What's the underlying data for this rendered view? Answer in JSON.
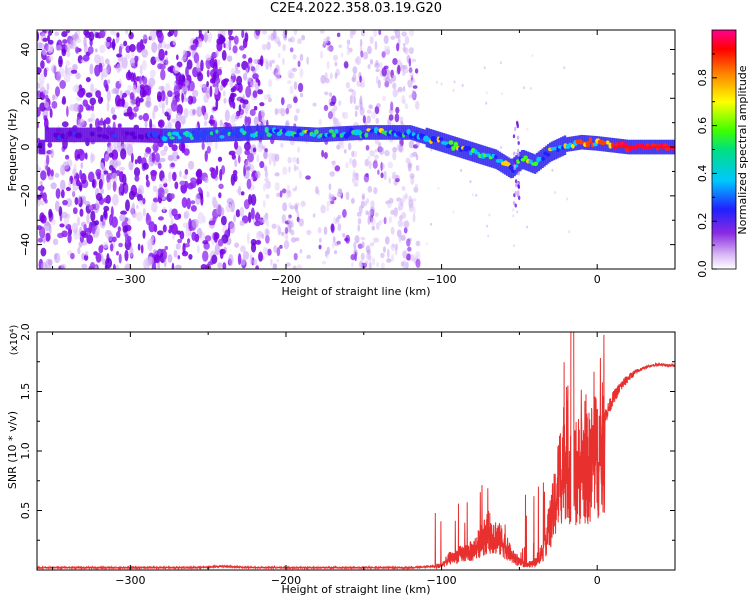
{
  "title": "C2E4.2022.358.03.19.G20",
  "colors": {
    "snr_line": "#e8302e",
    "axis": "#000000"
  },
  "chart_data": [
    {
      "type": "heatmap",
      "title": "C2E4.2022.358.03.19.G20",
      "xlabel": "Height of straight line (km)",
      "ylabel": "Frequency (Hz)",
      "xlim": [
        -360,
        50
      ],
      "ylim": [
        -50,
        48
      ],
      "xticks": [
        -300,
        -200,
        -100,
        0
      ],
      "yticks": [
        -40,
        -20,
        0,
        20,
        40
      ],
      "colorbar": {
        "label": "Normalized spectral amplitude",
        "range": [
          0,
          1
        ],
        "ticks": [
          0.0,
          0.2,
          0.4,
          0.6,
          0.8
        ],
        "colormap": "rainbow (white → violet → blue → cyan → green → yellow → red → magenta)"
      },
      "ridge": [
        {
          "x": -355,
          "f": 5
        },
        {
          "x": -300,
          "f": 5
        },
        {
          "x": -270,
          "f": 4.5
        },
        {
          "x": -210,
          "f": 6
        },
        {
          "x": -180,
          "f": 5
        },
        {
          "x": -150,
          "f": 6
        },
        {
          "x": -120,
          "f": 6
        },
        {
          "x": -110,
          "f": 4
        },
        {
          "x": -95,
          "f": 1
        },
        {
          "x": -80,
          "f": -2
        },
        {
          "x": -65,
          "f": -5
        },
        {
          "x": -55,
          "f": -9
        },
        {
          "x": -48,
          "f": -5
        },
        {
          "x": -40,
          "f": -7
        },
        {
          "x": -30,
          "f": -2
        },
        {
          "x": -20,
          "f": 1
        },
        {
          "x": -10,
          "f": 2
        },
        {
          "x": 0,
          "f": 1.5
        },
        {
          "x": 20,
          "f": 0
        },
        {
          "x": 50,
          "f": 0
        }
      ]
    },
    {
      "type": "line",
      "xlabel": "Height of straight line (km)",
      "ylabel": "SNR (10 * v/v)",
      "y_multiplier": "(x10⁴)",
      "xlim": [
        -360,
        50
      ],
      "ylim": [
        0,
        2.0
      ],
      "xticks": [
        -300,
        -200,
        -100,
        0
      ],
      "yticks": [
        0.5,
        1.0,
        1.5,
        2.0
      ],
      "ytick_labels": [
        "0.5",
        "1.0",
        "1.5",
        "2.0"
      ],
      "series": [
        {
          "x": [
            -360,
            -340,
            -320,
            -300,
            -280,
            -260,
            -240,
            -220,
            -200,
            -180,
            -160,
            -140,
            -120,
            -105,
            -100,
            -95,
            -90,
            -85,
            -80,
            -75,
            -70,
            -65,
            -60,
            -55,
            -50,
            -45,
            -40,
            -35,
            -30,
            -27,
            -24,
            -21,
            -18,
            -15,
            -12,
            -9,
            -6,
            -3,
            0,
            5,
            10,
            15,
            20,
            25,
            30,
            35,
            40,
            45,
            50
          ],
          "values": [
            0.02,
            0.02,
            0.02,
            0.02,
            0.02,
            0.02,
            0.03,
            0.02,
            0.02,
            0.02,
            0.02,
            0.02,
            0.02,
            0.03,
            0.05,
            0.12,
            0.15,
            0.18,
            0.2,
            0.3,
            0.4,
            0.35,
            0.28,
            0.15,
            0.08,
            0.05,
            0.08,
            0.2,
            0.5,
            0.7,
            1.0,
            1.2,
            1.1,
            1.0,
            1.05,
            1.1,
            1.05,
            1.15,
            1.2,
            1.3,
            1.45,
            1.55,
            1.62,
            1.67,
            1.7,
            1.72,
            1.73,
            1.72,
            1.72
          ]
        }
      ]
    }
  ],
  "axis_text": {
    "top_xlabel": "Height of straight line (km)",
    "top_ylabel": "Frequency (Hz)",
    "colorbar_label": "Normalized spectral amplitude",
    "bottom_xlabel": "Height of straight line (km)",
    "bottom_ylabel": "SNR (10 * v/v)",
    "bottom_multiplier": "(x10⁴)"
  }
}
